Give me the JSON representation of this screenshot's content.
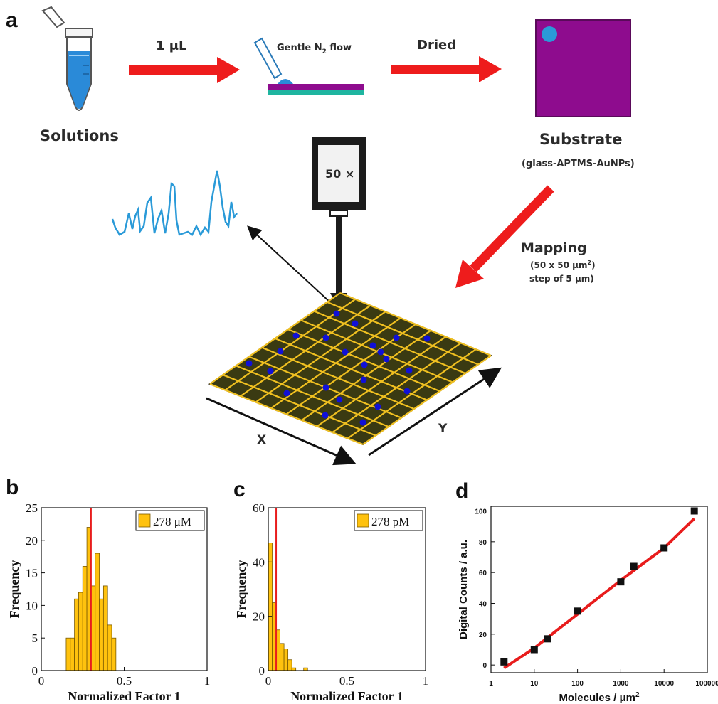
{
  "panels": {
    "a": "a",
    "b": "b",
    "c": "c",
    "d": "d"
  },
  "schematic": {
    "solutions": "Solutions",
    "volume": "1 μL",
    "gentle_flow_pre": "Gentle N",
    "gentle_flow_sub": "2",
    "gentle_flow_post": " flow",
    "dried": "Dried",
    "substrate": "Substrate",
    "substrate_sub": "(glass-APTMS-AuNPs)",
    "objective": "50 ×",
    "mapping": "Mapping",
    "mapping_area_pre": "(50 x 50 μm",
    "mapping_area_sup": "2",
    "mapping_step": "step of 5 μm)",
    "x_axis": "X",
    "y_axis": "Y",
    "colors": {
      "arrow_red": "#ee1c1c",
      "tube_blue": "#2a8ad8",
      "substrate_purple": "#8e0c8e",
      "grid_yellow": "#f0c020",
      "dot_blue": "#1010d8",
      "spectrum_blue": "#2a9ad8"
    }
  },
  "chart_data": [
    {
      "panel": "b",
      "type": "bar",
      "legend": "278 μM",
      "xlabel": "Normalized Factor 1",
      "ylabel": "Frequency",
      "xlim": [
        0,
        1
      ],
      "ylim": [
        0,
        25
      ],
      "xticks": [
        "0",
        "0.5",
        "1"
      ],
      "yticks": [
        "0",
        "5",
        "10",
        "15",
        "20",
        "25"
      ],
      "bin_width": 0.025,
      "bins_start": [
        0.15,
        0.175,
        0.2,
        0.225,
        0.25,
        0.275,
        0.3,
        0.325,
        0.35,
        0.375,
        0.4,
        0.425
      ],
      "values": [
        5,
        5,
        11,
        12,
        16,
        22,
        13,
        18,
        11,
        13,
        7,
        5
      ],
      "vline": 0.3,
      "colors": {
        "bar": "#ffc20e",
        "line": "#e81c1c"
      }
    },
    {
      "panel": "c",
      "type": "bar",
      "legend": "278 pM",
      "xlabel": "Normalized Factor 1",
      "ylabel": "Frequency",
      "xlim": [
        0,
        1
      ],
      "ylim": [
        0,
        60
      ],
      "xticks": [
        "0",
        "0.5",
        "1"
      ],
      "yticks": [
        "0",
        "20",
        "40",
        "60"
      ],
      "bin_width": 0.025,
      "bins_start": [
        0,
        0.025,
        0.05,
        0.075,
        0.1,
        0.125,
        0.15,
        0.175,
        0.2,
        0.225
      ],
      "values": [
        47,
        25,
        15,
        10,
        8,
        4,
        1,
        0,
        0,
        1
      ],
      "vline": 0.05,
      "colors": {
        "bar": "#ffc20e",
        "line": "#e81c1c"
      }
    },
    {
      "panel": "d",
      "type": "scatter",
      "xlabel_pre": "Molecules / μm",
      "xlabel_sup": "2",
      "ylabel": "Digital Counts / a.u.",
      "xscale": "log",
      "xlim": [
        1,
        100000
      ],
      "ylim": [
        -5,
        103
      ],
      "xticks": [
        "1",
        "10",
        "100",
        "1000",
        "10000",
        "100000"
      ],
      "yticks": [
        "0",
        "20",
        "40",
        "60",
        "80",
        "100"
      ],
      "points": [
        {
          "x": 2,
          "y": 2
        },
        {
          "x": 10,
          "y": 10
        },
        {
          "x": 20,
          "y": 17
        },
        {
          "x": 100,
          "y": 35
        },
        {
          "x": 1000,
          "y": 54
        },
        {
          "x": 2000,
          "y": 64
        },
        {
          "x": 10000,
          "y": 76
        },
        {
          "x": 50000,
          "y": 100
        }
      ],
      "fit": [
        {
          "x": 2,
          "y": -2
        },
        {
          "x": 10,
          "y": 11
        },
        {
          "x": 100,
          "y": 33
        },
        {
          "x": 1000,
          "y": 55
        },
        {
          "x": 10000,
          "y": 76
        },
        {
          "x": 50000,
          "y": 95
        }
      ],
      "colors": {
        "point": "#111111",
        "fit": "#e81c1c"
      }
    }
  ]
}
